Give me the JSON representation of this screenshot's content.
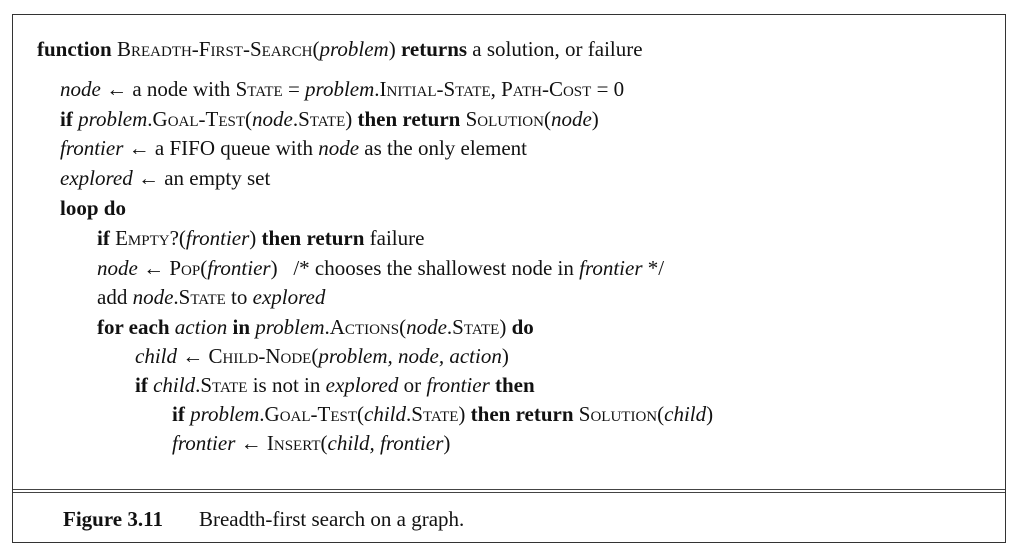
{
  "algorithm": {
    "lines": [
      {
        "depth": 0,
        "segs": [
          {
            "t": "function ",
            "s": "b"
          },
          {
            "t": "Breadth-First-Search",
            "s": "sc"
          },
          {
            "t": "(",
            "s": "r"
          },
          {
            "t": "problem",
            "s": "i"
          },
          {
            "t": ") ",
            "s": "r"
          },
          {
            "t": "returns",
            "s": "b"
          },
          {
            "t": " a solution, or failure",
            "s": "r"
          }
        ]
      },
      {
        "depth": 1,
        "segs": [
          {
            "t": "node",
            "s": "i"
          },
          {
            "t": " ← a node with ",
            "s": "r"
          },
          {
            "t": "State",
            "s": "sc"
          },
          {
            "t": " = ",
            "s": "r"
          },
          {
            "t": "problem",
            "s": "i"
          },
          {
            "t": ".",
            "s": "r"
          },
          {
            "t": "Initial-State",
            "s": "sc"
          },
          {
            "t": ", ",
            "s": "r"
          },
          {
            "t": "Path-Cost",
            "s": "sc"
          },
          {
            "t": " = 0",
            "s": "r"
          }
        ]
      },
      {
        "depth": 1,
        "segs": [
          {
            "t": "if ",
            "s": "b"
          },
          {
            "t": "problem",
            "s": "i"
          },
          {
            "t": ".",
            "s": "r"
          },
          {
            "t": "Goal-Test",
            "s": "sc"
          },
          {
            "t": "(",
            "s": "r"
          },
          {
            "t": "node",
            "s": "i"
          },
          {
            "t": ".",
            "s": "r"
          },
          {
            "t": "State",
            "s": "sc"
          },
          {
            "t": ") ",
            "s": "r"
          },
          {
            "t": "then return ",
            "s": "b"
          },
          {
            "t": "Solution",
            "s": "sc"
          },
          {
            "t": "(",
            "s": "r"
          },
          {
            "t": "node",
            "s": "i"
          },
          {
            "t": ")",
            "s": "r"
          }
        ]
      },
      {
        "depth": 1,
        "segs": [
          {
            "t": "frontier",
            "s": "i"
          },
          {
            "t": " ← a FIFO queue with ",
            "s": "r"
          },
          {
            "t": "node",
            "s": "i"
          },
          {
            "t": " as the only element",
            "s": "r"
          }
        ]
      },
      {
        "depth": 1,
        "segs": [
          {
            "t": "explored",
            "s": "i"
          },
          {
            "t": " ← an empty set",
            "s": "r"
          }
        ]
      },
      {
        "depth": 1,
        "segs": [
          {
            "t": "loop do",
            "s": "b"
          }
        ]
      },
      {
        "depth": 2,
        "segs": [
          {
            "t": "if ",
            "s": "b"
          },
          {
            "t": "Empty?",
            "s": "sc"
          },
          {
            "t": "(",
            "s": "r"
          },
          {
            "t": "frontier",
            "s": "i"
          },
          {
            "t": ") ",
            "s": "r"
          },
          {
            "t": "then return",
            "s": "b"
          },
          {
            "t": " failure",
            "s": "r"
          }
        ]
      },
      {
        "depth": 2,
        "segs": [
          {
            "t": "node",
            "s": "i"
          },
          {
            "t": " ← ",
            "s": "r"
          },
          {
            "t": "Pop",
            "s": "sc"
          },
          {
            "t": "(",
            "s": "r"
          },
          {
            "t": "frontier",
            "s": "i"
          },
          {
            "t": ")   /* chooses the shallowest node in ",
            "s": "r"
          },
          {
            "t": "frontier",
            "s": "i"
          },
          {
            "t": " */",
            "s": "r"
          }
        ]
      },
      {
        "depth": 2,
        "segs": [
          {
            "t": "add ",
            "s": "r"
          },
          {
            "t": "node",
            "s": "i"
          },
          {
            "t": ".",
            "s": "r"
          },
          {
            "t": "State",
            "s": "sc"
          },
          {
            "t": " to ",
            "s": "r"
          },
          {
            "t": "explored",
            "s": "i"
          }
        ]
      },
      {
        "depth": 2,
        "segs": [
          {
            "t": "for each ",
            "s": "b"
          },
          {
            "t": "action",
            "s": "i"
          },
          {
            "t": " in ",
            "s": "b"
          },
          {
            "t": "problem",
            "s": "i"
          },
          {
            "t": ".",
            "s": "r"
          },
          {
            "t": "Actions",
            "s": "sc"
          },
          {
            "t": "(",
            "s": "r"
          },
          {
            "t": "node",
            "s": "i"
          },
          {
            "t": ".",
            "s": "r"
          },
          {
            "t": "State",
            "s": "sc"
          },
          {
            "t": ") ",
            "s": "r"
          },
          {
            "t": "do",
            "s": "b"
          }
        ]
      },
      {
        "depth": 3,
        "segs": [
          {
            "t": "child",
            "s": "i"
          },
          {
            "t": " ← ",
            "s": "r"
          },
          {
            "t": "Child-Node",
            "s": "sc"
          },
          {
            "t": "(",
            "s": "r"
          },
          {
            "t": "problem, node, action",
            "s": "i"
          },
          {
            "t": ")",
            "s": "r"
          }
        ]
      },
      {
        "depth": 3,
        "segs": [
          {
            "t": "if ",
            "s": "b"
          },
          {
            "t": "child",
            "s": "i"
          },
          {
            "t": ".",
            "s": "r"
          },
          {
            "t": "State",
            "s": "sc"
          },
          {
            "t": " is not in ",
            "s": "r"
          },
          {
            "t": "explored",
            "s": "i"
          },
          {
            "t": " or ",
            "s": "r"
          },
          {
            "t": "frontier",
            "s": "i"
          },
          {
            "t": " then",
            "s": "b"
          }
        ]
      },
      {
        "depth": 4,
        "segs": [
          {
            "t": "if ",
            "s": "b"
          },
          {
            "t": "problem",
            "s": "i"
          },
          {
            "t": ".",
            "s": "r"
          },
          {
            "t": "Goal-Test",
            "s": "sc"
          },
          {
            "t": "(",
            "s": "r"
          },
          {
            "t": "child",
            "s": "i"
          },
          {
            "t": ".",
            "s": "r"
          },
          {
            "t": "State",
            "s": "sc"
          },
          {
            "t": ") ",
            "s": "r"
          },
          {
            "t": "then return ",
            "s": "b"
          },
          {
            "t": "Solution",
            "s": "sc"
          },
          {
            "t": "(",
            "s": "r"
          },
          {
            "t": "child",
            "s": "i"
          },
          {
            "t": ")",
            "s": "r"
          }
        ]
      },
      {
        "depth": 4,
        "segs": [
          {
            "t": "frontier",
            "s": "i"
          },
          {
            "t": " ← ",
            "s": "r"
          },
          {
            "t": "Insert",
            "s": "sc"
          },
          {
            "t": "(",
            "s": "r"
          },
          {
            "t": "child, frontier",
            "s": "i"
          },
          {
            "t": ")",
            "s": "r"
          }
        ]
      }
    ]
  },
  "caption": {
    "number": "Figure 3.11",
    "text": "Breadth-first search on a graph."
  }
}
